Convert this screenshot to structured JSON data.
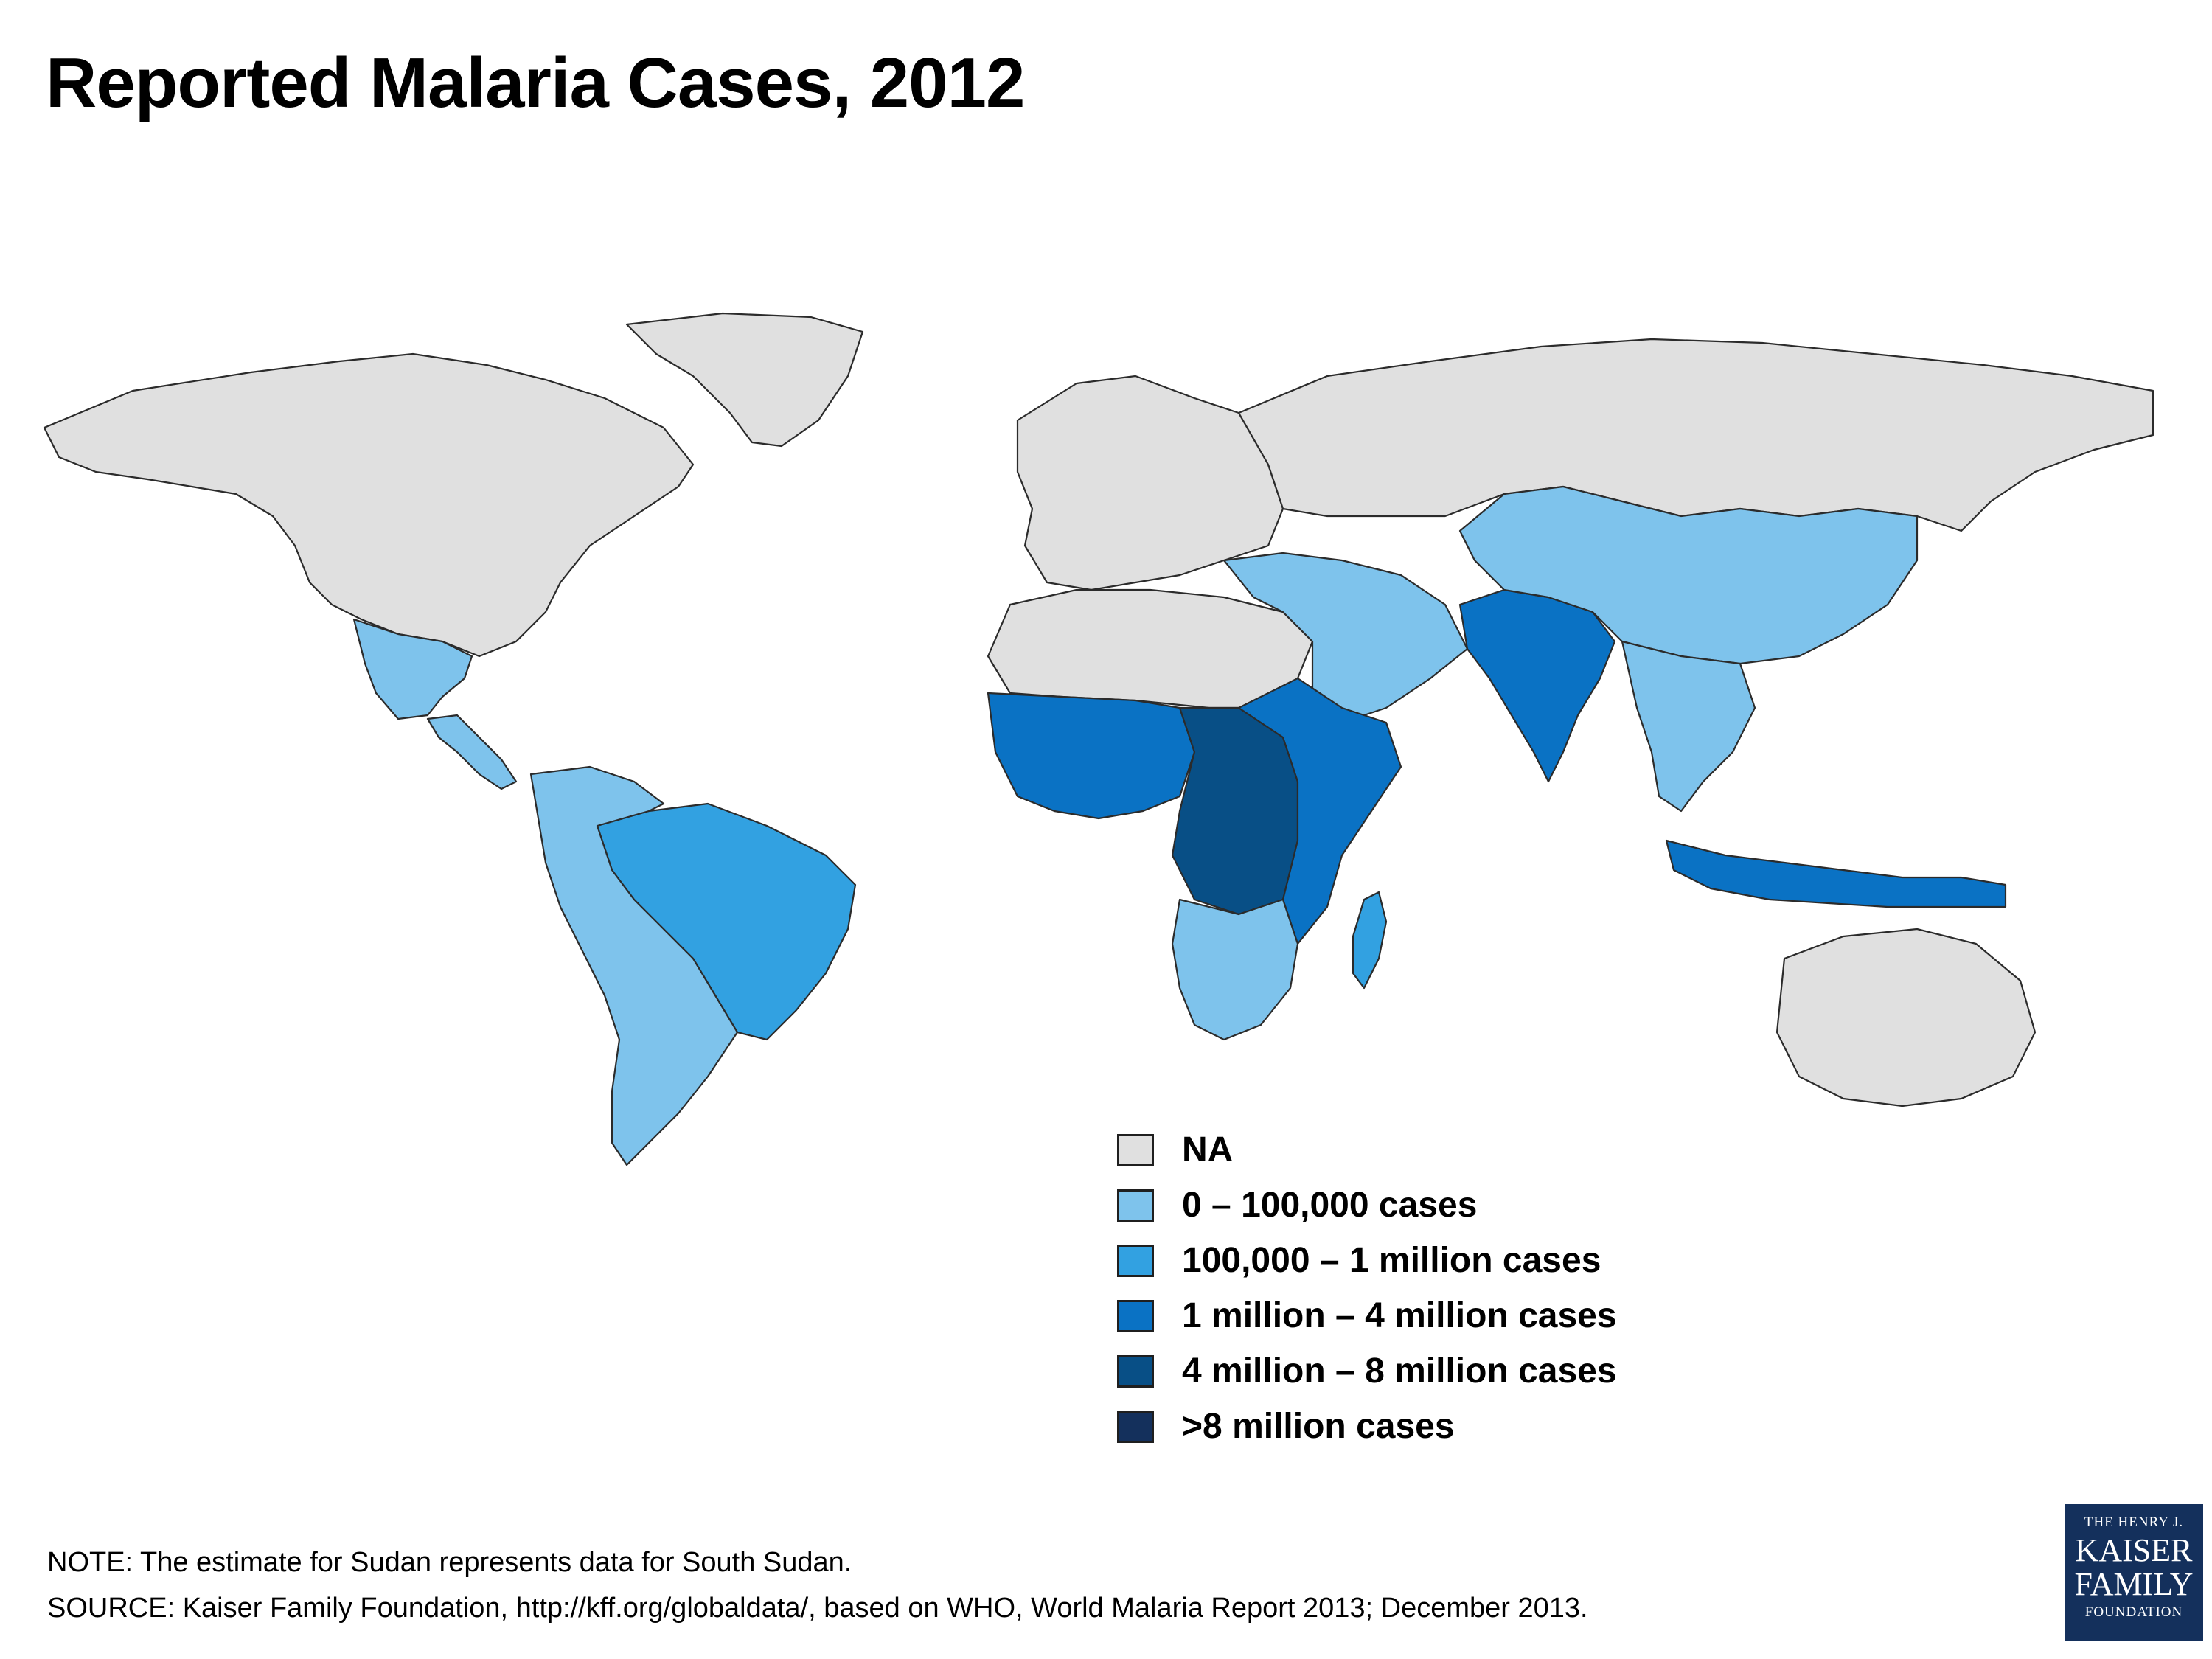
{
  "title": "Reported Malaria Cases, 2012",
  "legend": {
    "items": [
      {
        "label": "NA",
        "color": "#e0e0e0"
      },
      {
        "label": "0 – 100,000 cases",
        "color": "#7ec3ec"
      },
      {
        "label": "100,000 – 1 million cases",
        "color": "#32a1e1"
      },
      {
        "label": "1 million – 4 million cases",
        "color": "#0a72c4"
      },
      {
        "label": "4 million – 8 million cases",
        "color": "#084f86"
      },
      {
        "label": ">8 million cases",
        "color": "#14305c"
      }
    ]
  },
  "map_data": {
    "type": "choropleth",
    "regions": {
      "north_america": "NA",
      "greenland": "NA",
      "mexico": "0 – 100,000 cases",
      "central_america": "0 – 100,000 cases",
      "brazil": "100,000 – 1 million cases",
      "south_america_other": "0 – 100,000 cases",
      "europe": "NA",
      "russia": "NA",
      "north_africa": "NA",
      "middle_east": "0 – 100,000 cases",
      "west_africa": "1 million – 4 million cases",
      "central_africa": "4 million – 8 million cases",
      "east_africa": "1 million – 4 million cases",
      "southern_africa": "0 – 100,000 cases",
      "madagascar": "100,000 – 1 million cases",
      "india": "1 million – 4 million cases",
      "china": "0 – 100,000 cases",
      "southeast_asia": "0 – 100,000 cases",
      "indonesia": "1 million – 4 million cases",
      "australia": "NA"
    }
  },
  "notes": {
    "note": "NOTE: The estimate for Sudan represents data for South Sudan.",
    "source": "SOURCE: Kaiser Family Foundation, http://kff.org/globaldata/, based on WHO, World Malaria Report 2013; December 2013."
  },
  "logo": {
    "line1": "THE HENRY J.",
    "line2": "KAISER",
    "line3": "FAMILY",
    "line4": "FOUNDATION"
  }
}
